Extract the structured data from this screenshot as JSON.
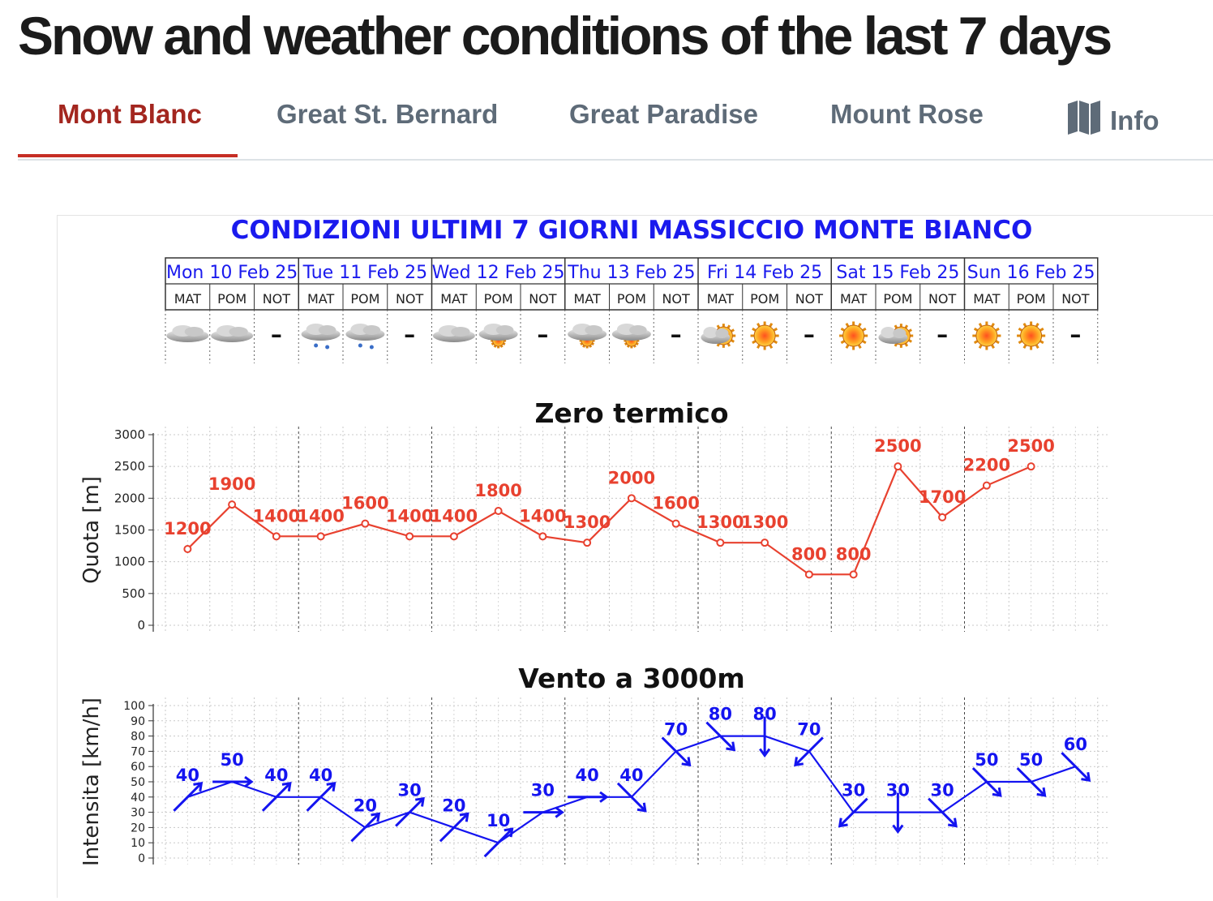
{
  "page": {
    "title": "Snow and weather conditions of the last 7 days"
  },
  "tabs": [
    {
      "label": "Mont Blanc",
      "active": true
    },
    {
      "label": "Great St. Bernard",
      "active": false
    },
    {
      "label": "Great Paradise",
      "active": false
    },
    {
      "label": "Mount Rose",
      "active": false
    },
    {
      "label": "Info",
      "active": false,
      "icon": "map-icon"
    }
  ],
  "colors": {
    "active_tab": "#a3261f",
    "tab_text": "#5e6b78",
    "freezing_line": "#e8412f",
    "wind": "#1414f0",
    "header_blue": "#1a1aee"
  },
  "chart_data": [
    {
      "type": "table",
      "title": "CONDIZIONI ULTIMI 7 GIORNI MASSICCIO MONTE BIANCO",
      "days": [
        "Mon 10 Feb 25",
        "Tue 11 Feb 25",
        "Wed 12 Feb 25",
        "Thu 13 Feb 25",
        "Fri 14 Feb 25",
        "Sat 15 Feb 25",
        "Sun 16 Feb 25"
      ],
      "periods": [
        "MAT",
        "POM",
        "NOT"
      ],
      "conditions": [
        [
          "overcast",
          "overcast",
          "none"
        ],
        [
          "cloudy-snow",
          "cloudy-snow",
          "none"
        ],
        [
          "overcast",
          "cloudy-sun",
          "none"
        ],
        [
          "cloudy-sun",
          "cloudy-sun",
          "none"
        ],
        [
          "partly-cloudy",
          "sunny",
          "none"
        ],
        [
          "sunny",
          "partly-cloudy",
          "none"
        ],
        [
          "sunny",
          "sunny",
          "none"
        ]
      ],
      "night_symbol": "–"
    },
    {
      "type": "line",
      "title": "Zero termico",
      "ylabel": "Quota [m]",
      "ylim": [
        0,
        3000
      ],
      "yticks": [
        0,
        500,
        1000,
        1500,
        2000,
        2500,
        3000
      ],
      "grid": true,
      "values": [
        1200,
        1900,
        1400,
        1400,
        1600,
        1400,
        1400,
        1800,
        1400,
        1300,
        2000,
        1600,
        1300,
        1300,
        800,
        800,
        2500,
        1700,
        2200,
        2500
      ]
    },
    {
      "type": "line",
      "title": "Vento a 3000m",
      "ylabel": "Intensita [km/h]",
      "ylim": [
        0,
        100
      ],
      "yticks": [
        0,
        10,
        20,
        30,
        40,
        50,
        60,
        70,
        80,
        90,
        100
      ],
      "grid": true,
      "values": [
        40,
        50,
        40,
        40,
        20,
        30,
        20,
        10,
        30,
        40,
        40,
        70,
        80,
        80,
        70,
        30,
        30,
        30,
        50,
        50,
        60
      ],
      "direction_arrows": [
        "NE",
        "E",
        "NE",
        "NE",
        "NE",
        "NE",
        "NE",
        "NE",
        "E",
        "E",
        "SE",
        "SE",
        "SE",
        "S",
        "SW",
        "SW",
        "S",
        "SE",
        "SE",
        "SE",
        "SE"
      ]
    }
  ]
}
